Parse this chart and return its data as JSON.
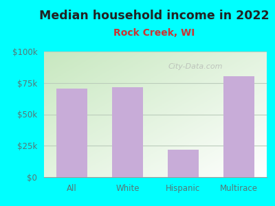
{
  "title": "Median household income in 2022",
  "subtitle": "Rock Creek, WI",
  "categories": [
    "All",
    "White",
    "Hispanic",
    "Multirace"
  ],
  "values": [
    70500,
    71500,
    22000,
    80500
  ],
  "bar_color": "#c8acd8",
  "title_fontsize": 12.5,
  "title_color": "#222222",
  "subtitle_fontsize": 10,
  "subtitle_color": "#cc3333",
  "tick_label_color": "#557777",
  "background_outer": "#00ffff",
  "ylim": [
    0,
    100000
  ],
  "yticks": [
    0,
    25000,
    50000,
    75000,
    100000
  ],
  "ytick_labels": [
    "$0",
    "$25k",
    "$50k",
    "$75k",
    "$100k"
  ],
  "watermark": "City-Data.com",
  "grid_color": "#bbccbb",
  "plot_bg_colors": [
    "#c8e8c0",
    "#ffffff"
  ],
  "bar_width": 0.55
}
